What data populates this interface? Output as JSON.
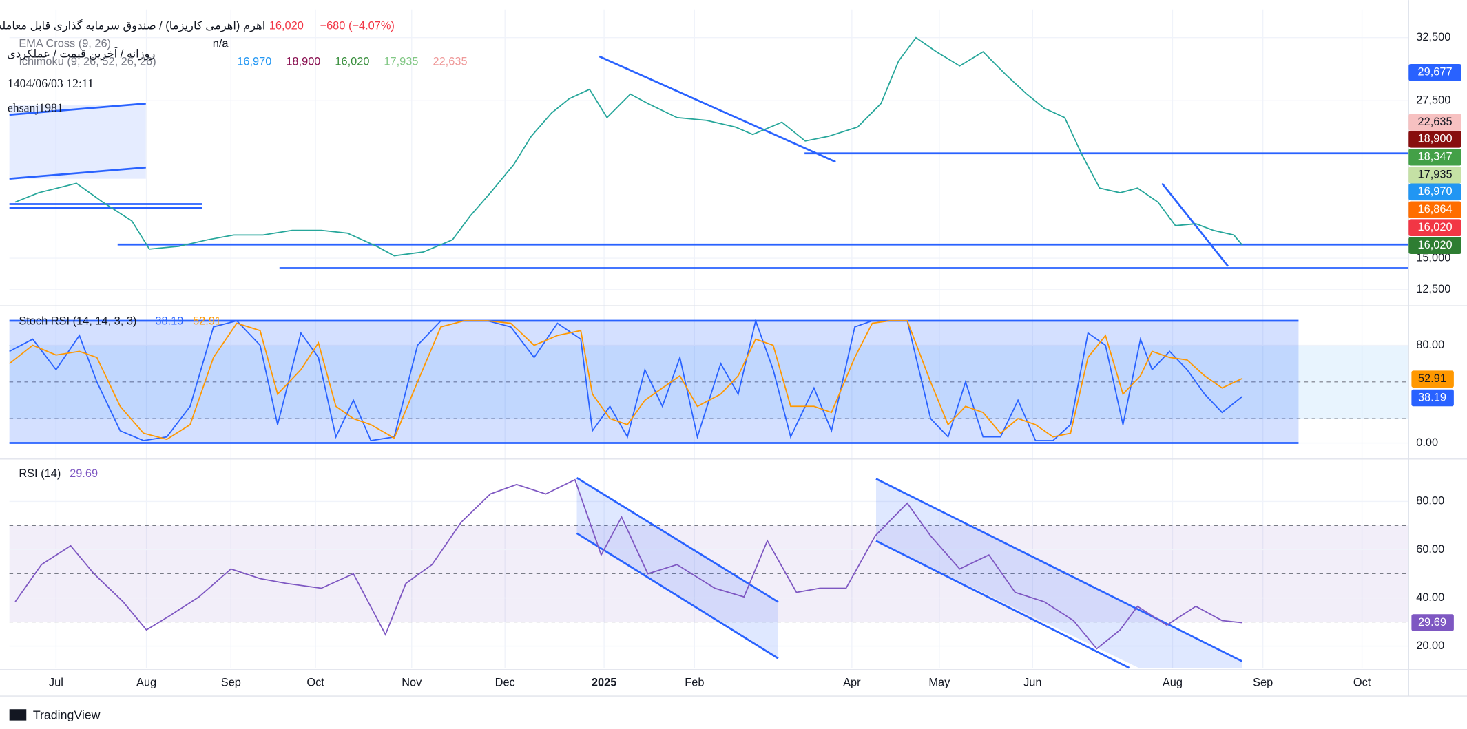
{
  "header": {
    "title": "اهرم (اهرمی کاریزما) / صندوق سرمایه گذاری قابل معامله",
    "price": "16,020",
    "change": "−680 (−4.07%)",
    "interval": "روزانه / آخرین قیمت / عملکردی",
    "datetime": "1404/06/03 12:11",
    "user": "ehsanj1981"
  },
  "indicators": {
    "ema": {
      "name": "EMA Cross (9, 26)",
      "value": "n/a"
    },
    "ichimoku": {
      "name": "Ichimoku (9, 26, 52, 26, 26)",
      "values": [
        {
          "label": "16,970",
          "color": "#2196f3"
        },
        {
          "label": "18,900",
          "color": "#880e4f"
        },
        {
          "label": "16,020",
          "color": "#388e3c"
        },
        {
          "label": "17,935",
          "color": "#81c784"
        },
        {
          "label": "22,635",
          "color": "#ef9a9a"
        }
      ]
    }
  },
  "price_labels": [
    {
      "label": "29,677",
      "color": "#2962ff",
      "text_color": "#ffffff"
    },
    {
      "label": "22,635",
      "color": "#f7c1c1",
      "text_color": "#131722"
    },
    {
      "label": "18,900",
      "color": "#880e0e",
      "text_color": "#ffffff"
    },
    {
      "label": "18,347",
      "color": "#43a047",
      "text_color": "#ffffff"
    },
    {
      "label": "17,935",
      "color": "#c5e1a5",
      "text_color": "#131722"
    },
    {
      "label": "16,970",
      "color": "#2196f3",
      "text_color": "#ffffff"
    },
    {
      "label": "16,864",
      "color": "#ff6d00",
      "text_color": "#ffffff"
    },
    {
      "label": "16,020",
      "color": "#f23645",
      "text_color": "#ffffff"
    },
    {
      "label": "16,020",
      "color": "#2e7d32",
      "text_color": "#ffffff"
    }
  ],
  "chart_data": [
    {
      "type": "line",
      "xlim": [
        0,
        480
      ],
      "ylim": [
        11450,
        34740
      ],
      "yticks": [
        {
          "value": 12500,
          "label": "12,500"
        },
        {
          "value": 15000,
          "label": "15,000"
        },
        {
          "value": 27500,
          "label": "27,500"
        },
        {
          "value": 32500,
          "label": "32,500"
        }
      ],
      "x": [
        2,
        10,
        23,
        32,
        42,
        48,
        58,
        68,
        77,
        87,
        97,
        107,
        116,
        126,
        132,
        142,
        152,
        158,
        165,
        173,
        179,
        186,
        192,
        199,
        205,
        213,
        219,
        229,
        239,
        249,
        255,
        265,
        273,
        281,
        291,
        299,
        305,
        311,
        318,
        326,
        334,
        342,
        349,
        355,
        362,
        368,
        374,
        381,
        387,
        394,
        400,
        407,
        413,
        420,
        423
      ],
      "series": [
        {
          "color": "#26a69a",
          "values": [
            19450,
            20190,
            20940,
            19450,
            17960,
            15720,
            15940,
            16460,
            16840,
            16840,
            17210,
            17210,
            16980,
            15940,
            15190,
            15490,
            16460,
            18330,
            20190,
            22430,
            24670,
            26530,
            27650,
            28400,
            26160,
            28020,
            27280,
            26160,
            25940,
            25410,
            24820,
            25790,
            24300,
            24670,
            25410,
            27280,
            30640,
            32500,
            31380,
            30260,
            31380,
            29520,
            28020,
            26900,
            26160,
            23180,
            20560,
            20190,
            20560,
            19450,
            17580,
            17730,
            17210,
            16840,
            16020
          ]
        }
      ]
    },
    {
      "type": "line",
      "title": "Stoch RSI (14, 14, 3, 3)",
      "xlim": [
        0,
        480
      ],
      "ylim": [
        -10.8,
        108.5
      ],
      "yticks": [
        {
          "value": 0,
          "label": "0.00"
        },
        {
          "value": 80,
          "label": "80.00"
        }
      ],
      "levels": [
        20,
        50,
        80
      ],
      "range_box": [
        0,
        100
      ],
      "x": [
        0,
        8,
        16,
        24,
        30,
        38,
        46,
        54,
        62,
        70,
        78,
        86,
        92,
        100,
        106,
        112,
        118,
        124,
        132,
        140,
        148,
        156,
        164,
        172,
        180,
        188,
        196,
        200,
        206,
        212,
        218,
        224,
        230,
        236,
        244,
        250,
        256,
        262,
        268,
        276,
        282,
        290,
        296,
        302,
        308,
        316,
        322,
        328,
        334,
        340,
        346,
        352,
        358,
        364,
        370,
        376,
        382,
        388,
        392,
        398,
        404,
        410,
        416,
        423
      ],
      "series": [
        {
          "color": "#2962ff",
          "values": [
            75,
            85,
            60,
            88,
            50,
            10,
            2,
            5,
            30,
            95,
            100,
            80,
            15,
            90,
            70,
            5,
            35,
            2,
            5,
            80,
            100,
            100,
            100,
            95,
            70,
            98,
            85,
            10,
            30,
            5,
            60,
            30,
            70,
            5,
            65,
            40,
            100,
            60,
            5,
            45,
            10,
            95,
            100,
            100,
            100,
            20,
            5,
            50,
            5,
            5,
            35,
            2,
            2,
            15,
            90,
            80,
            15,
            85,
            60,
            75,
            60,
            40,
            25,
            38.19
          ]
        },
        {
          "color": "#ff9800",
          "values": [
            65,
            80,
            72,
            75,
            70,
            30,
            8,
            3,
            15,
            70,
            98,
            92,
            40,
            60,
            82,
            30,
            20,
            15,
            4,
            50,
            95,
            100,
            100,
            98,
            80,
            88,
            92,
            40,
            20,
            15,
            35,
            45,
            55,
            30,
            40,
            55,
            85,
            80,
            30,
            30,
            25,
            70,
            98,
            100,
            100,
            50,
            15,
            30,
            25,
            8,
            20,
            15,
            5,
            8,
            70,
            88,
            40,
            55,
            75,
            70,
            68,
            55,
            45,
            52.91
          ]
        }
      ]
    },
    {
      "type": "line",
      "title": "RSI (14)",
      "xlim": [
        0,
        480
      ],
      "ylim": [
        11.0,
        96.8
      ],
      "yticks": [
        {
          "value": 20,
          "label": "20.00"
        },
        {
          "value": 40,
          "label": "40.00"
        },
        {
          "value": 60,
          "label": "60.00"
        },
        {
          "value": 80,
          "label": "80.00"
        }
      ],
      "levels": [
        30,
        50,
        70
      ],
      "xticks": [
        {
          "value": 16,
          "label": "Jul"
        },
        {
          "value": 47,
          "label": "Aug"
        },
        {
          "value": 76,
          "label": "Sep"
        },
        {
          "value": 105,
          "label": "Oct"
        },
        {
          "value": 138,
          "label": "Nov"
        },
        {
          "value": 170,
          "label": "Dec"
        },
        {
          "value": 204,
          "label": "2025"
        },
        {
          "value": 235,
          "label": "Feb"
        },
        {
          "value": 289,
          "label": "Apr"
        },
        {
          "value": 319,
          "label": "May"
        },
        {
          "value": 351,
          "label": "Jun"
        },
        {
          "value": 399,
          "label": "Aug"
        },
        {
          "value": 430,
          "label": "Sep"
        },
        {
          "value": 464,
          "label": "Oct"
        }
      ],
      "x": [
        2,
        11,
        21,
        29,
        39,
        47,
        55,
        65,
        76,
        86,
        95,
        107,
        118,
        129,
        136,
        145,
        155,
        165,
        174,
        184,
        194,
        203,
        210,
        219,
        229,
        242,
        252,
        260,
        270,
        278,
        287,
        297,
        308,
        316,
        326,
        336,
        345,
        355,
        365,
        373,
        381,
        387,
        397,
        407,
        416,
        423
      ],
      "series": [
        {
          "color": "#7e57c2",
          "values": [
            38.4,
            53.8,
            61.6,
            50,
            38.4,
            26.7,
            32.6,
            40.4,
            52,
            48,
            46,
            44,
            50,
            24.8,
            46,
            53.8,
            71.4,
            83.1,
            87,
            83.1,
            89,
            57.8,
            73.5,
            50,
            53.8,
            44,
            40.4,
            63.7,
            42.3,
            44,
            44,
            65.7,
            79.3,
            65.7,
            52,
            57.8,
            42.3,
            38.4,
            30.6,
            18.9,
            26.7,
            36.5,
            28.7,
            36.5,
            30.6,
            29.69
          ]
        }
      ]
    }
  ],
  "footer": {
    "brand": "TradingView"
  }
}
